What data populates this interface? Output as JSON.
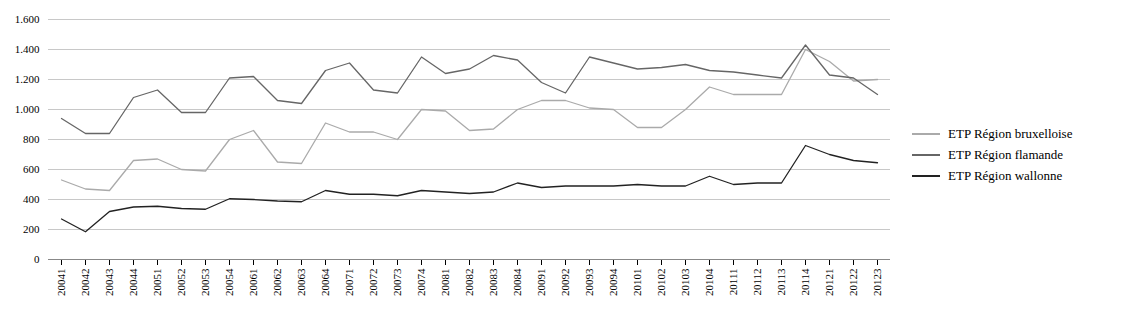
{
  "chart_data": {
    "type": "line",
    "categories": [
      "20041",
      "20042",
      "20043",
      "20044",
      "20051",
      "20052",
      "20053",
      "20054",
      "20061",
      "20062",
      "20063",
      "20064",
      "20071",
      "20072",
      "20073",
      "20074",
      "20081",
      "20082",
      "20083",
      "20084",
      "20091",
      "20092",
      "20093",
      "20094",
      "20101",
      "20102",
      "20103",
      "20104",
      "20111",
      "20112",
      "20113",
      "20114",
      "20121",
      "20122",
      "20123"
    ],
    "series": [
      {
        "name": "ETP Région bruxelloise",
        "color": "#aaaaaa",
        "values": [
          530,
          470,
          460,
          660,
          670,
          600,
          590,
          800,
          860,
          650,
          640,
          910,
          850,
          850,
          800,
          1000,
          990,
          860,
          870,
          1000,
          1060,
          1060,
          1010,
          1000,
          880,
          880,
          1000,
          1150,
          1100,
          1100,
          1100,
          1400,
          1320,
          1190,
          1200
        ]
      },
      {
        "name": "ETP Région flamande",
        "color": "#666666",
        "values": [
          940,
          840,
          840,
          1080,
          1130,
          980,
          980,
          1210,
          1220,
          1060,
          1040,
          1260,
          1310,
          1130,
          1110,
          1350,
          1240,
          1270,
          1360,
          1330,
          1180,
          1110,
          1350,
          1310,
          1270,
          1280,
          1300,
          1260,
          1250,
          1230,
          1210,
          1430,
          1230,
          1210,
          1100
        ]
      },
      {
        "name": "ETP Région wallonne",
        "color": "#222222",
        "values": [
          270,
          185,
          320,
          350,
          355,
          340,
          335,
          405,
          400,
          390,
          385,
          460,
          435,
          435,
          425,
          460,
          450,
          440,
          450,
          510,
          480,
          490,
          490,
          490,
          500,
          490,
          490,
          555,
          500,
          510,
          510,
          760,
          700,
          660,
          645
        ]
      }
    ],
    "ylim": [
      0,
      1600
    ],
    "yticks": [
      0,
      200,
      400,
      600,
      800,
      {
        "value": 1000,
        "label": "1.000"
      },
      {
        "value": 1200,
        "label": "1.200"
      },
      {
        "value": 1400,
        "label": "1.400"
      },
      {
        "value": 1600,
        "label": "1.600"
      }
    ],
    "grid": true,
    "legend": "right"
  }
}
